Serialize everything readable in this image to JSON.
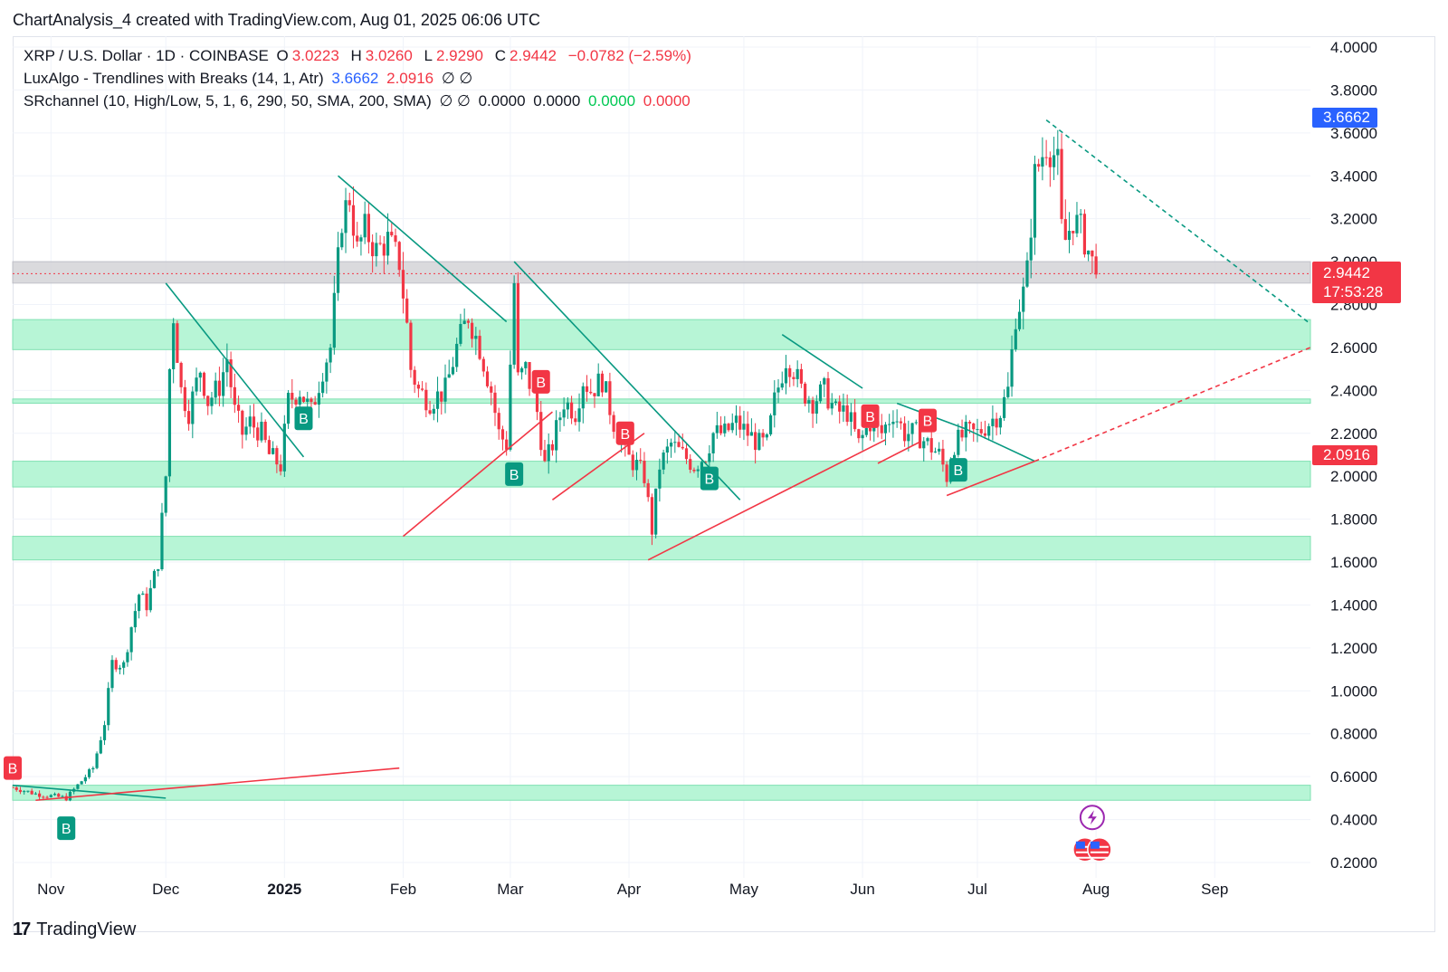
{
  "header": {
    "title": "ChartAnalysis_4 created with TradingView.com, Aug 01, 2025 06:06 UTC"
  },
  "legend": {
    "symbol": "XRP / U.S. Dollar · 1D · COINBASE",
    "open_label": "O",
    "open": "3.0223",
    "high_label": "H",
    "high": "3.0260",
    "low_label": "L",
    "low": "2.9290",
    "close_label": "C",
    "close": "2.9442",
    "change": "−0.0782 (−2.59%)",
    "indicator1": "LuxAlgo - Trendlines with Breaks (14, 1, Atr)",
    "indicator1_upper": "3.6662",
    "indicator1_lower": "2.0916",
    "indicator1_icons": "∅ ∅",
    "indicator2": "SRchannel (10, High/Low, 5, 1, 6, 290, 50, SMA, 200, SMA)",
    "indicator2_icons": "∅ ∅",
    "indicator2_v1": "0.0000",
    "indicator2_v2": "0.0000",
    "indicator2_v3": "0.0000",
    "indicator2_v4": "0.0000"
  },
  "price_tags": {
    "upper": "3.6662",
    "close": "2.9442",
    "countdown": "17:53:28",
    "lower": "2.0916"
  },
  "colors": {
    "up": "#089981",
    "down": "#f23645",
    "zone": "#b7f5d6",
    "zone_border": "#7fe0b1",
    "resistance_zone": "#d4d4d8",
    "accent": "#2962ff"
  },
  "footer": {
    "brand": "TradingView",
    "brand_mark": "17"
  },
  "chart_data": {
    "type": "candlestick",
    "title": "XRP / U.S. Dollar · 1D · COINBASE",
    "ylim": [
      0.1,
      4.1
    ],
    "y_ticks": [
      "0.2000",
      "0.4000",
      "0.6000",
      "0.8000",
      "1.0000",
      "1.2000",
      "1.4000",
      "1.6000",
      "1.8000",
      "2.0000",
      "2.2000",
      "2.4000",
      "2.6000",
      "2.8000",
      "3.0000",
      "3.2000",
      "3.4000",
      "3.6000",
      "3.8000",
      "4.0000"
    ],
    "x_start": "2024-10-22",
    "x_end": "2025-09-26",
    "x_ticks": [
      {
        "label": "Nov",
        "date": "2024-11-01",
        "bold": false
      },
      {
        "label": "Dec",
        "date": "2024-12-01",
        "bold": false
      },
      {
        "label": "2025",
        "date": "2025-01-01",
        "bold": true
      },
      {
        "label": "Feb",
        "date": "2025-02-01",
        "bold": false
      },
      {
        "label": "Mar",
        "date": "2025-03-01",
        "bold": false
      },
      {
        "label": "Apr",
        "date": "2025-04-01",
        "bold": false
      },
      {
        "label": "May",
        "date": "2025-05-01",
        "bold": false
      },
      {
        "label": "Jun",
        "date": "2025-06-01",
        "bold": false
      },
      {
        "label": "Jul",
        "date": "2025-07-01",
        "bold": false
      },
      {
        "label": "Aug",
        "date": "2025-08-01",
        "bold": false
      },
      {
        "label": "Sep",
        "date": "2025-09-01",
        "bold": false
      }
    ],
    "close_path": [
      [
        "2024-10-22",
        0.55
      ],
      [
        "2024-10-28",
        0.52
      ],
      [
        "2024-11-05",
        0.5
      ],
      [
        "2024-11-08",
        0.56
      ],
      [
        "2024-11-12",
        0.64
      ],
      [
        "2024-11-15",
        0.85
      ],
      [
        "2024-11-17",
        1.13
      ],
      [
        "2024-11-20",
        1.12
      ],
      [
        "2024-11-22",
        1.3
      ],
      [
        "2024-11-24",
        1.45
      ],
      [
        "2024-11-26",
        1.4
      ],
      [
        "2024-11-29",
        1.6
      ],
      [
        "2024-12-01",
        2.0
      ],
      [
        "2024-12-02",
        2.5
      ],
      [
        "2024-12-03",
        2.75
      ],
      [
        "2024-12-05",
        2.4
      ],
      [
        "2024-12-07",
        2.3
      ],
      [
        "2024-12-10",
        2.5
      ],
      [
        "2024-12-12",
        2.35
      ],
      [
        "2024-12-15",
        2.42
      ],
      [
        "2024-12-17",
        2.55
      ],
      [
        "2024-12-19",
        2.3
      ],
      [
        "2024-12-21",
        2.2
      ],
      [
        "2024-12-23",
        2.25
      ],
      [
        "2024-12-26",
        2.2
      ],
      [
        "2024-12-28",
        2.1
      ],
      [
        "2024-12-31",
        2.05
      ],
      [
        "2025-01-02",
        2.35
      ],
      [
        "2025-01-05",
        2.4
      ],
      [
        "2025-01-08",
        2.3
      ],
      [
        "2025-01-11",
        2.5
      ],
      [
        "2025-01-13",
        2.6
      ],
      [
        "2025-01-15",
        3.0
      ],
      [
        "2025-01-16",
        3.2
      ],
      [
        "2025-01-18",
        3.3
      ],
      [
        "2025-01-20",
        3.05
      ],
      [
        "2025-01-22",
        3.15
      ],
      [
        "2025-01-25",
        3.05
      ],
      [
        "2025-01-28",
        3.1
      ],
      [
        "2025-01-31",
        3.0
      ],
      [
        "2025-02-02",
        2.7
      ],
      [
        "2025-02-03",
        2.5
      ],
      [
        "2025-02-05",
        2.4
      ],
      [
        "2025-02-08",
        2.35
      ],
      [
        "2025-02-12",
        2.4
      ],
      [
        "2025-02-15",
        2.6
      ],
      [
        "2025-02-18",
        2.75
      ],
      [
        "2025-02-21",
        2.6
      ],
      [
        "2025-02-24",
        2.4
      ],
      [
        "2025-02-26",
        2.2
      ],
      [
        "2025-02-28",
        2.15
      ],
      [
        "2025-03-02",
        2.9
      ],
      [
        "2025-03-03",
        2.45
      ],
      [
        "2025-03-05",
        2.5
      ],
      [
        "2025-03-08",
        2.3
      ],
      [
        "2025-03-10",
        2.05
      ],
      [
        "2025-03-12",
        2.15
      ],
      [
        "2025-03-15",
        2.35
      ],
      [
        "2025-03-18",
        2.3
      ],
      [
        "2025-03-20",
        2.45
      ],
      [
        "2025-03-22",
        2.4
      ],
      [
        "2025-03-25",
        2.45
      ],
      [
        "2025-03-28",
        2.25
      ],
      [
        "2025-03-31",
        2.1
      ],
      [
        "2025-04-03",
        2.05
      ],
      [
        "2025-04-05",
        2.0
      ],
      [
        "2025-04-07",
        1.75
      ],
      [
        "2025-04-09",
        2.05
      ],
      [
        "2025-04-12",
        2.15
      ],
      [
        "2025-04-15",
        2.1
      ],
      [
        "2025-04-18",
        2.05
      ],
      [
        "2025-04-21",
        2.1
      ],
      [
        "2025-04-23",
        2.2
      ],
      [
        "2025-04-26",
        2.2
      ],
      [
        "2025-04-29",
        2.25
      ],
      [
        "2025-05-02",
        2.2
      ],
      [
        "2025-05-05",
        2.15
      ],
      [
        "2025-05-07",
        2.15
      ],
      [
        "2025-05-09",
        2.35
      ],
      [
        "2025-05-12",
        2.55
      ],
      [
        "2025-05-14",
        2.5
      ],
      [
        "2025-05-16",
        2.4
      ],
      [
        "2025-05-19",
        2.35
      ],
      [
        "2025-05-22",
        2.4
      ],
      [
        "2025-05-25",
        2.3
      ],
      [
        "2025-05-28",
        2.3
      ],
      [
        "2025-05-31",
        2.15
      ],
      [
        "2025-06-03",
        2.25
      ],
      [
        "2025-06-06",
        2.2
      ],
      [
        "2025-06-09",
        2.3
      ],
      [
        "2025-06-12",
        2.2
      ],
      [
        "2025-06-15",
        2.2
      ],
      [
        "2025-06-18",
        2.15
      ],
      [
        "2025-06-21",
        2.1
      ],
      [
        "2025-06-23",
        2.0
      ],
      [
        "2025-06-25",
        2.15
      ],
      [
        "2025-06-28",
        2.2
      ],
      [
        "2025-07-01",
        2.2
      ],
      [
        "2025-07-04",
        2.25
      ],
      [
        "2025-07-07",
        2.3
      ],
      [
        "2025-07-09",
        2.4
      ],
      [
        "2025-07-11",
        2.75
      ],
      [
        "2025-07-13",
        2.85
      ],
      [
        "2025-07-14",
        2.95
      ],
      [
        "2025-07-16",
        3.4
      ],
      [
        "2025-07-17",
        3.45
      ],
      [
        "2025-07-18",
        3.5
      ],
      [
        "2025-07-19",
        3.55
      ],
      [
        "2025-07-21",
        3.5
      ],
      [
        "2025-07-22",
        3.45
      ],
      [
        "2025-07-23",
        3.15
      ],
      [
        "2025-07-24",
        3.1
      ],
      [
        "2025-07-26",
        3.2
      ],
      [
        "2025-07-28",
        3.15
      ],
      [
        "2025-07-30",
        3.05
      ],
      [
        "2025-08-01",
        2.94
      ]
    ],
    "sr_zones": [
      {
        "from": 2.59,
        "to": 2.73
      },
      {
        "from": 2.34,
        "to": 2.36
      },
      {
        "from": 1.95,
        "to": 2.07
      },
      {
        "from": 1.61,
        "to": 1.72
      },
      {
        "from": 0.49,
        "to": 0.56
      }
    ],
    "resistance_zone": {
      "from": 2.9,
      "to": 3.0
    },
    "close_line": 2.9442,
    "down_trendlines": [
      [
        [
          "2024-10-22",
          0.56
        ],
        [
          "2024-12-01",
          0.5
        ]
      ],
      [
        [
          "2024-12-01",
          2.9
        ],
        [
          "2025-01-06",
          2.09
        ]
      ],
      [
        [
          "2025-01-15",
          3.4
        ],
        [
          "2025-02-28",
          2.72
        ]
      ],
      [
        [
          "2025-03-02",
          3.0
        ],
        [
          "2025-04-30",
          1.89
        ]
      ],
      [
        [
          "2025-05-11",
          2.66
        ],
        [
          "2025-06-01",
          2.41
        ]
      ],
      [
        [
          "2025-06-10",
          2.34
        ],
        [
          "2025-06-28",
          2.22
        ]
      ],
      [
        [
          "2025-06-28",
          2.22
        ],
        [
          "2025-07-16",
          2.07
        ]
      ]
    ],
    "down_projection": [
      [
        "2025-07-19",
        3.66
      ],
      [
        "2025-09-26",
        2.71
      ]
    ],
    "up_trendlines": [
      [
        [
          "2024-10-28",
          0.49
        ],
        [
          "2025-01-31",
          0.64
        ]
      ],
      [
        [
          "2025-02-01",
          1.72
        ],
        [
          "2025-03-12",
          2.3
        ]
      ],
      [
        [
          "2025-03-12",
          1.89
        ],
        [
          "2025-04-05",
          2.2
        ]
      ],
      [
        [
          "2025-04-06",
          1.61
        ],
        [
          "2025-06-07",
          2.17
        ]
      ],
      [
        [
          "2025-06-05",
          2.06
        ],
        [
          "2025-06-16",
          2.16
        ]
      ],
      [
        [
          "2025-06-23",
          1.91
        ],
        [
          "2025-07-16",
          2.07
        ]
      ]
    ],
    "up_projection": [
      [
        "2025-07-16",
        2.07
      ],
      [
        "2025-09-26",
        2.6
      ]
    ],
    "signals": [
      {
        "type": "B",
        "kind": "bear",
        "date": "2024-10-22",
        "price": 0.64
      },
      {
        "type": "B",
        "kind": "bull",
        "date": "2024-11-05",
        "price": 0.36
      },
      {
        "type": "B",
        "kind": "bull",
        "date": "2025-01-06",
        "price": 2.27
      },
      {
        "type": "B",
        "kind": "bull",
        "date": "2025-03-02",
        "price": 2.01
      },
      {
        "type": "B",
        "kind": "bear",
        "date": "2025-03-09",
        "price": 2.44
      },
      {
        "type": "B",
        "kind": "bear",
        "date": "2025-03-31",
        "price": 2.2
      },
      {
        "type": "B",
        "kind": "bull",
        "date": "2025-04-22",
        "price": 1.99
      },
      {
        "type": "B",
        "kind": "bear",
        "date": "2025-06-03",
        "price": 2.28
      },
      {
        "type": "B",
        "kind": "bear",
        "date": "2025-06-18",
        "price": 2.26
      },
      {
        "type": "B",
        "kind": "bull",
        "date": "2025-06-26",
        "price": 2.03
      }
    ],
    "event_icons": [
      {
        "name": "lightning",
        "date": "2025-07-31",
        "price": 0.41
      },
      {
        "name": "us-flags",
        "date": "2025-07-31",
        "price": 0.26
      }
    ]
  }
}
